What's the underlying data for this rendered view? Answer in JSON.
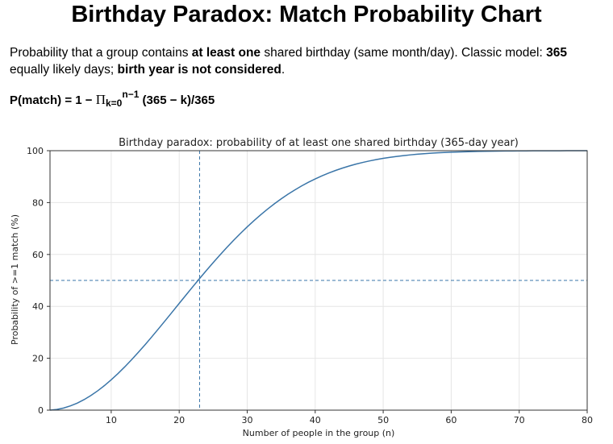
{
  "page": {
    "title": "Birthday Paradox: Match Probability Chart",
    "desc_part1": "Probability that a group contains ",
    "desc_bold1": "at least one",
    "desc_part2": " shared birthday (same month/day). Classic model: ",
    "desc_bold2": "365",
    "desc_part3": " equally likely days; ",
    "desc_bold3": "birth year is not considered",
    "desc_part4": ".",
    "formula_lhs": "P(match) = 1 − ",
    "formula_pi": "Π",
    "formula_sub": "k=0",
    "formula_sup": "n−1",
    "formula_rhs": " (365 − k)/365"
  },
  "chart_data": {
    "type": "line",
    "title": "Birthday paradox: probability of at least one shared birthday (365-day year)",
    "xlabel": "Number of people in the group (n)",
    "ylabel": "Probability of >=1 match (%)",
    "xlim": [
      1,
      80
    ],
    "ylim": [
      0,
      100
    ],
    "xticks": [
      10,
      20,
      30,
      40,
      50,
      60,
      70,
      80
    ],
    "yticks": [
      0,
      20,
      40,
      60,
      80,
      100
    ],
    "grid": true,
    "days": 365,
    "n_start": 1,
    "n_end": 80,
    "reference_lines": {
      "x": 23,
      "y": 50
    },
    "line_color": "#3a75a8",
    "sample_points": [
      {
        "n": 10,
        "p": 11.7
      },
      {
        "n": 20,
        "p": 41.1
      },
      {
        "n": 23,
        "p": 50.7
      },
      {
        "n": 30,
        "p": 70.6
      },
      {
        "n": 40,
        "p": 89.1
      },
      {
        "n": 50,
        "p": 97.0
      },
      {
        "n": 60,
        "p": 99.4
      },
      {
        "n": 70,
        "p": 99.9
      },
      {
        "n": 80,
        "p": 100.0
      }
    ]
  }
}
